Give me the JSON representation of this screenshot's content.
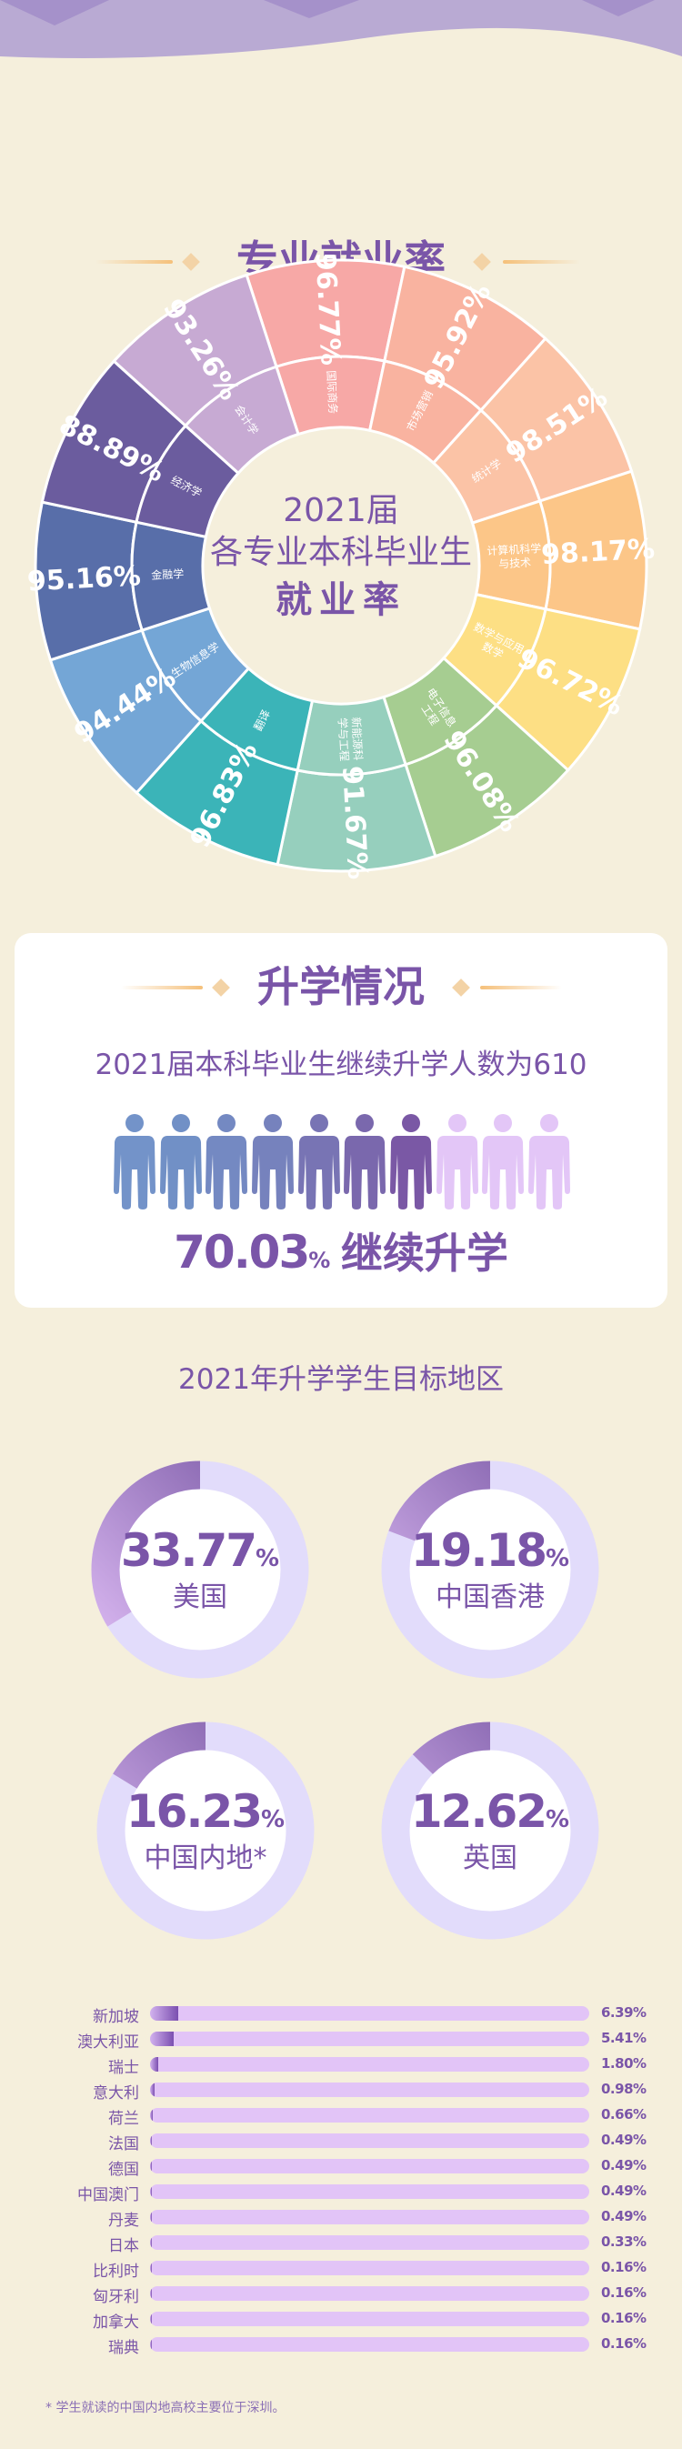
{
  "colors": {
    "primary": "#7a55a8",
    "background": "#f5efdc",
    "track": "#e2dcfb",
    "bar_track": "#e2c4f7"
  },
  "section1": {
    "title": "专业就业率",
    "center_line1": "2021届",
    "center_line2": "各专业本科毕业生",
    "center_line3": "就业率"
  },
  "section2": {
    "title": "升学情况",
    "subtitle": "2021届本科毕业生继续升学人数为610",
    "people": {
      "filled": 7,
      "total": 10
    },
    "rate_value": "70.03",
    "rate_unit": "%",
    "rate_label": "继续升学"
  },
  "section3": {
    "title": "2021年升学学生目标地区",
    "footnote": "* 学生就读的中国内地高校主要位于深圳。"
  },
  "chart_data": [
    {
      "type": "pie",
      "title": "2021届各专业本科毕业生就业率",
      "categories": [
        "国际商务",
        "市场营销",
        "统计学",
        "计算机科学与技术",
        "数学与应用数学",
        "电子信息工程",
        "新能源科学与工程",
        "翻译",
        "生物信息学",
        "金融学",
        "经济学",
        "会计学"
      ],
      "labels": [
        [
          "国际商务"
        ],
        [
          "市场营销"
        ],
        [
          "统计学"
        ],
        [
          "计算机科学",
          "与技术"
        ],
        [
          "数学与应用",
          "数学"
        ],
        [
          "电子信息",
          "工程"
        ],
        [
          "新能源科",
          "学与工程"
        ],
        [
          "翻译"
        ],
        [
          "生物信息学"
        ],
        [
          "金融学"
        ],
        [
          "经济学"
        ],
        [
          "会计学"
        ]
      ],
      "values": [
        96.77,
        95.92,
        98.51,
        98.17,
        96.72,
        96.08,
        91.67,
        96.83,
        94.44,
        95.16,
        88.89,
        93.26
      ],
      "value_labels": [
        "96.77%",
        "95.92%",
        "98.51%",
        "98.17%",
        "96.72%",
        "96.08%",
        "91.67%",
        "96.83%",
        "94.44%",
        "95.16%",
        "88.89%",
        "93.26%"
      ],
      "colors": [
        "#f7a8a6",
        "#f9b3a0",
        "#fbc3a6",
        "#fcc688",
        "#fddf84",
        "#a6cd91",
        "#96cfbd",
        "#3bb4b8",
        "#74a6d6",
        "#586ea9",
        "#6b5c9e",
        "#c7aad3"
      ]
    },
    {
      "type": "pie",
      "categories": [
        "美国",
        "中国香港",
        "中国内地*",
        "英国"
      ],
      "values": [
        33.77,
        19.18,
        16.23,
        12.62
      ],
      "value_labels": [
        "33.77",
        "19.18",
        "16.23",
        "12.62"
      ],
      "unit": "%"
    },
    {
      "type": "bar",
      "orientation": "horizontal",
      "categories": [
        "新加坡",
        "澳大利亚",
        "瑞士",
        "意大利",
        "荷兰",
        "法国",
        "德国",
        "中国澳门",
        "丹麦",
        "日本",
        "比利时",
        "匈牙利",
        "加拿大",
        "瑞典"
      ],
      "values": [
        6.39,
        5.41,
        1.8,
        0.98,
        0.66,
        0.49,
        0.49,
        0.49,
        0.49,
        0.33,
        0.16,
        0.16,
        0.16,
        0.16
      ],
      "value_labels": [
        "6.39%",
        "5.41%",
        "1.80%",
        "0.98%",
        "0.66%",
        "0.49%",
        "0.49%",
        "0.49%",
        "0.49%",
        "0.33%",
        "0.16%",
        "0.16%",
        "0.16%",
        "0.16%"
      ],
      "xlim": [
        0,
        100
      ]
    }
  ]
}
